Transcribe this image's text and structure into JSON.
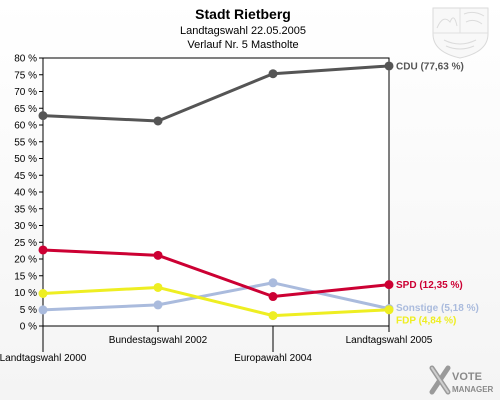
{
  "chart_data": {
    "type": "line",
    "title": "Stadt Rietberg",
    "subtitle": "Landtagswahl 22.05.2005",
    "subtitle2": "Verlauf Nr. 5 Mastholte",
    "x": [
      "Landtagswahl 2000",
      "Bundestagswahl 2002",
      "Europawahl 2004",
      "Landtagswahl 2005"
    ],
    "ylim": [
      0,
      80
    ],
    "yticks": [
      "0 %",
      "5 %",
      "10 %",
      "15 %",
      "20 %",
      "25 %",
      "30 %",
      "35 %",
      "40 %",
      "45 %",
      "50 %",
      "55 %",
      "60 %",
      "65 %",
      "70 %",
      "75 %",
      "80 %"
    ],
    "grid": false,
    "series": [
      {
        "name": "CDU",
        "end_label": "CDU (77,63 %)",
        "color": "#555555",
        "values": [
          62.8,
          61.2,
          75.3,
          77.63
        ]
      },
      {
        "name": "SPD",
        "end_label": "SPD (12,35 %)",
        "color": "#cc0033",
        "values": [
          22.7,
          21.1,
          8.8,
          12.35
        ]
      },
      {
        "name": "Sonstige",
        "end_label": "Sonstige (5,18 %)",
        "color": "#aabbdd",
        "values": [
          4.8,
          6.3,
          12.9,
          5.18
        ]
      },
      {
        "name": "FDP",
        "end_label": "FDP (4,84 %)",
        "color": "#eeee22",
        "values": [
          9.7,
          11.5,
          3.1,
          4.84
        ]
      }
    ]
  },
  "branding": {
    "logo_text": "VOTE MANAGER",
    "logo_line1": "VOTE",
    "logo_line2": "MANAGER",
    "crest_icon": "nrw-coat-of-arms-icon"
  }
}
